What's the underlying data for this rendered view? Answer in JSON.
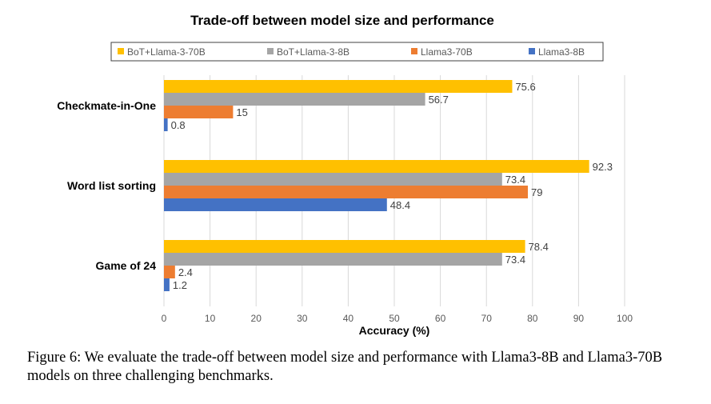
{
  "chart_data": {
    "type": "bar",
    "orientation": "horizontal",
    "title": "Trade-off between model size and performance",
    "xlabel": "Accuracy (%)",
    "ylabel": "",
    "xlim": [
      0,
      100
    ],
    "xticks": [
      0,
      10,
      20,
      30,
      40,
      50,
      60,
      70,
      80,
      90,
      100
    ],
    "grid": true,
    "legend_position": "top",
    "categories": [
      "Checkmate-in-One",
      "Word list sorting",
      "Game of 24"
    ],
    "series": [
      {
        "name": "BoT+Llama-3-70B",
        "color": "#FFC000",
        "values": [
          75.6,
          92.3,
          78.4
        ]
      },
      {
        "name": "BoT+Llama-3-8B",
        "color": "#A5A5A5",
        "values": [
          56.7,
          73.4,
          73.4
        ]
      },
      {
        "name": "Llama3-70B",
        "color": "#ED7D31",
        "values": [
          15,
          79,
          2.4
        ]
      },
      {
        "name": "Llama3-8B",
        "color": "#4472C4",
        "values": [
          0.8,
          48.4,
          1.2
        ]
      }
    ]
  },
  "caption": "Figure 6: We evaluate the trade-off between model size and performance with Llama3-8B and Llama3-70B models on three challenging benchmarks."
}
